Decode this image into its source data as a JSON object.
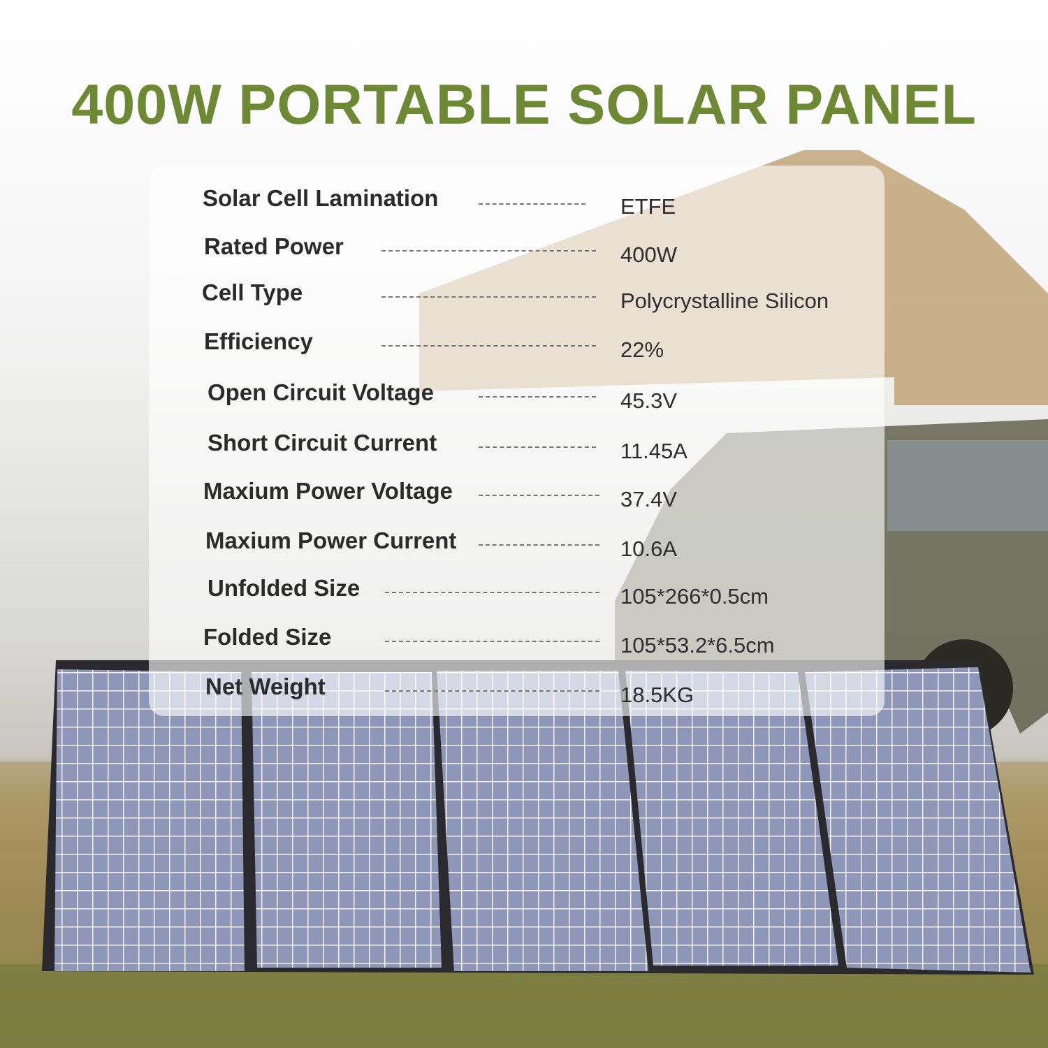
{
  "title": "400W PORTABLE SOLAR PANEL",
  "colors": {
    "title": "#6e8933",
    "text": "#2b2b2b"
  },
  "specs": [
    {
      "label": "Solar Cell Lamination",
      "value": "ETFE"
    },
    {
      "label": "Rated Power",
      "value": "400W"
    },
    {
      "label": "Cell Type",
      "value": "Polycrystalline Silicon"
    },
    {
      "label": "Efficiency",
      "value": "22%"
    },
    {
      "label": "Open Circuit Voltage",
      "value": "45.3V"
    },
    {
      "label": "Short Circuit Current",
      "value": "11.45A"
    },
    {
      "label": "Maxium Power Voltage",
      "value": "37.4V"
    },
    {
      "label": "Maxium Power Current",
      "value": "10.6A"
    },
    {
      "label": "Unfolded Size",
      "value": "105*266*0.5cm"
    },
    {
      "label": "Folded Size",
      "value": "105*53.2*6.5cm"
    },
    {
      "label": "Net Weight",
      "value": "18.5KG"
    }
  ]
}
